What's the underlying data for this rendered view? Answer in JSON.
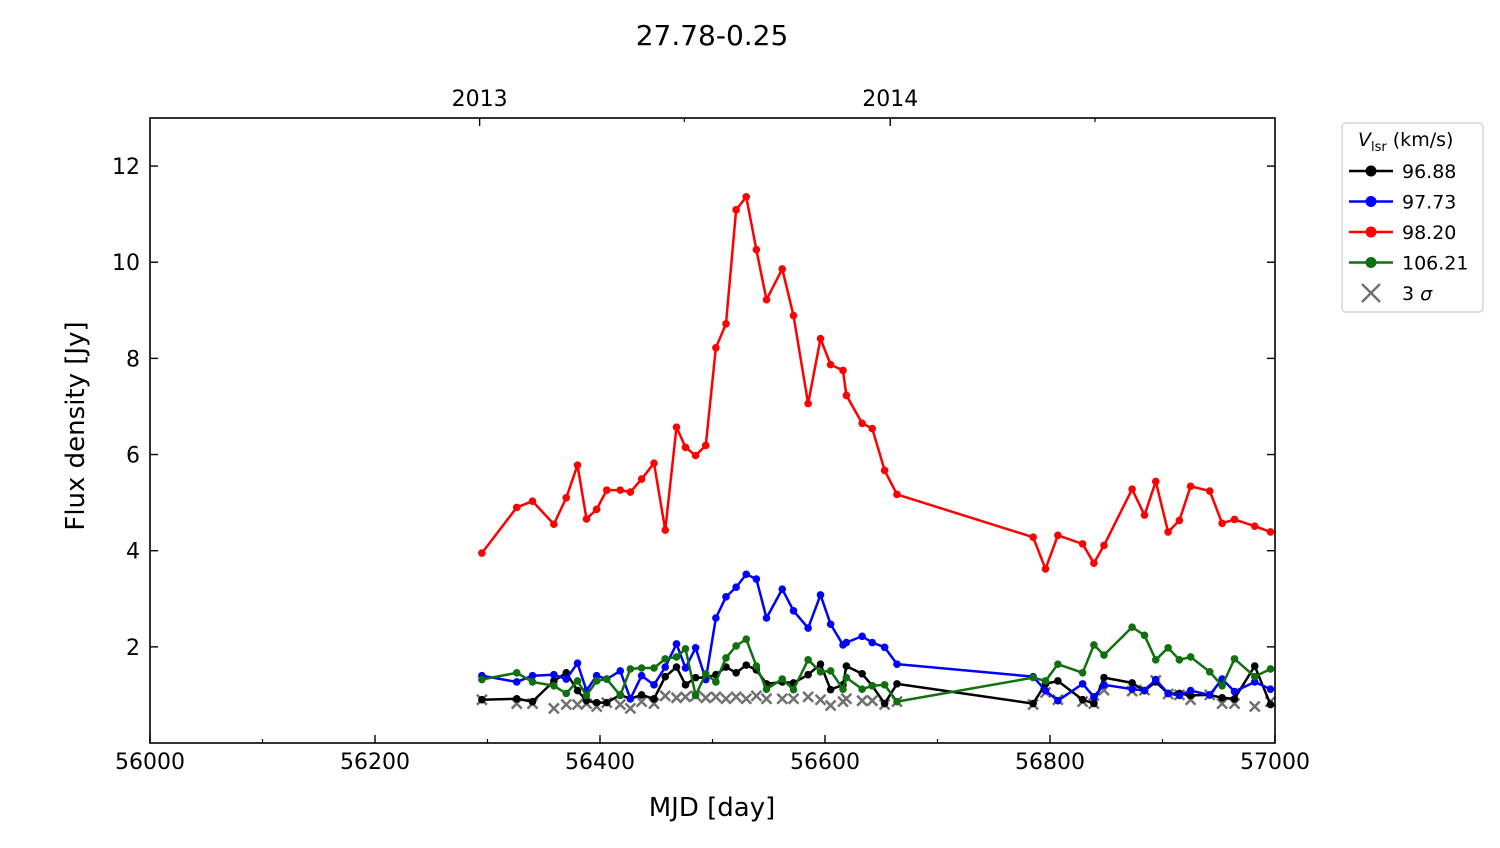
{
  "chart_data": {
    "type": "line",
    "title": "27.78-0.25",
    "xlabel": "MJD [day]",
    "ylabel": "Flux density [Jy]",
    "xlim": [
      56000,
      57000
    ],
    "ylim": [
      0,
      13
    ],
    "xticks": [
      56000,
      56200,
      56400,
      56600,
      56800,
      57000
    ],
    "yticks": [
      2,
      4,
      6,
      8,
      10,
      12
    ],
    "top_axis": {
      "ticks": [
        {
          "label": "2013",
          "mjd": 56293
        },
        {
          "label": "2014",
          "mjd": 56658
        }
      ]
    },
    "grid": false,
    "legend": {
      "title_main": "V",
      "title_sub": "lsr",
      "title_unit": " (km/s)",
      "placement": "outside-right"
    },
    "x": [
      56295,
      56326,
      56340,
      56359,
      56370,
      56380,
      56388,
      56397,
      56406,
      56418,
      56427,
      56437,
      56448,
      56458,
      56468,
      56476,
      56485,
      56494,
      56503,
      56512,
      56521,
      56530,
      56539,
      56548,
      56562,
      56572,
      56585,
      56596,
      56605,
      56616,
      56619,
      56633,
      56642,
      56653,
      56664,
      56785,
      56796,
      56807,
      56829,
      56839,
      56848,
      56873,
      56884,
      56894,
      56905,
      56915,
      56925,
      56942,
      56953,
      56964,
      56982,
      56996
    ],
    "series": [
      {
        "name": "96.88",
        "color": "#000000",
        "marker": "circle",
        "values": [
          0.9,
          0.92,
          0.86,
          1.29,
          1.46,
          1.09,
          0.88,
          0.84,
          0.84,
          1.0,
          0.92,
          1.0,
          0.92,
          1.38,
          1.58,
          1.21,
          1.36,
          1.36,
          1.42,
          1.58,
          1.46,
          1.62,
          1.52,
          1.23,
          1.27,
          1.25,
          1.42,
          1.64,
          1.11,
          1.21,
          1.6,
          1.44,
          1.19,
          0.82,
          1.23,
          0.82,
          1.23,
          1.29,
          0.9,
          0.82,
          1.36,
          1.25,
          1.09,
          1.27,
          1.03,
          1.03,
          0.99,
          1.0,
          0.94,
          0.92,
          1.6,
          0.8
        ]
      },
      {
        "name": "97.73",
        "color": "#0000ff",
        "marker": "circle",
        "values": [
          1.4,
          1.27,
          1.4,
          1.42,
          1.33,
          1.66,
          1.09,
          1.4,
          1.33,
          1.5,
          0.92,
          1.4,
          1.21,
          1.58,
          2.06,
          1.56,
          1.98,
          1.32,
          2.6,
          3.04,
          3.24,
          3.51,
          3.41,
          2.6,
          3.2,
          2.75,
          2.39,
          3.08,
          2.47,
          2.04,
          2.09,
          2.22,
          2.09,
          1.99,
          1.64,
          1.38,
          1.09,
          0.88,
          1.23,
          0.96,
          1.21,
          1.12,
          1.09,
          1.32,
          1.03,
          0.99,
          1.09,
          1.0,
          1.33,
          1.07,
          1.27,
          1.12
        ]
      },
      {
        "name": "98.20",
        "color": "#ff0000",
        "marker": "circle",
        "values": [
          3.95,
          4.9,
          5.03,
          4.55,
          5.1,
          5.78,
          4.66,
          4.86,
          5.26,
          5.26,
          5.22,
          5.49,
          5.82,
          4.43,
          6.57,
          6.15,
          5.98,
          6.19,
          8.22,
          8.72,
          11.09,
          11.36,
          10.26,
          9.22,
          9.86,
          8.89,
          7.06,
          8.41,
          7.87,
          7.75,
          7.23,
          6.65,
          6.54,
          5.67,
          5.17,
          4.28,
          3.62,
          4.32,
          4.14,
          3.74,
          4.11,
          5.28,
          4.74,
          5.44,
          4.39,
          4.63,
          5.34,
          5.24,
          4.57,
          4.65,
          4.51,
          4.39
        ]
      },
      {
        "name": "106.21",
        "color": "#107010",
        "marker": "circle",
        "values": [
          1.32,
          1.46,
          1.27,
          1.19,
          1.03,
          1.29,
          0.99,
          1.29,
          1.33,
          0.99,
          1.54,
          1.56,
          1.56,
          1.75,
          1.79,
          1.96,
          0.99,
          1.44,
          1.27,
          1.77,
          2.02,
          2.16,
          1.6,
          1.12,
          1.33,
          1.11,
          1.73,
          1.48,
          1.5,
          1.12,
          1.36,
          1.12,
          1.19,
          1.21,
          0.86,
          1.36,
          1.29,
          1.64,
          1.46,
          2.04,
          1.83,
          2.41,
          2.24,
          1.73,
          1.98,
          1.73,
          1.79,
          1.48,
          1.19,
          1.75,
          1.38,
          1.54
        ]
      },
      {
        "name": "3",
        "name_symbol": "σ",
        "color": "#707070",
        "marker": "x",
        "values": [
          0.9,
          0.82,
          0.82,
          0.72,
          0.8,
          0.8,
          0.82,
          0.76,
          0.84,
          0.8,
          0.72,
          0.86,
          0.82,
          0.98,
          0.94,
          0.96,
          0.98,
          0.94,
          0.96,
          0.92,
          0.96,
          0.92,
          0.98,
          0.92,
          0.92,
          0.92,
          0.96,
          0.9,
          0.78,
          0.86,
          0.92,
          0.88,
          0.88,
          0.8,
          0.86,
          0.8,
          1.05,
          0.9,
          0.86,
          0.82,
          1.1,
          1.08,
          1.1,
          1.3,
          1.02,
          1.0,
          0.9,
          1.0,
          0.82,
          0.82,
          0.76,
          0.86
        ]
      }
    ]
  }
}
